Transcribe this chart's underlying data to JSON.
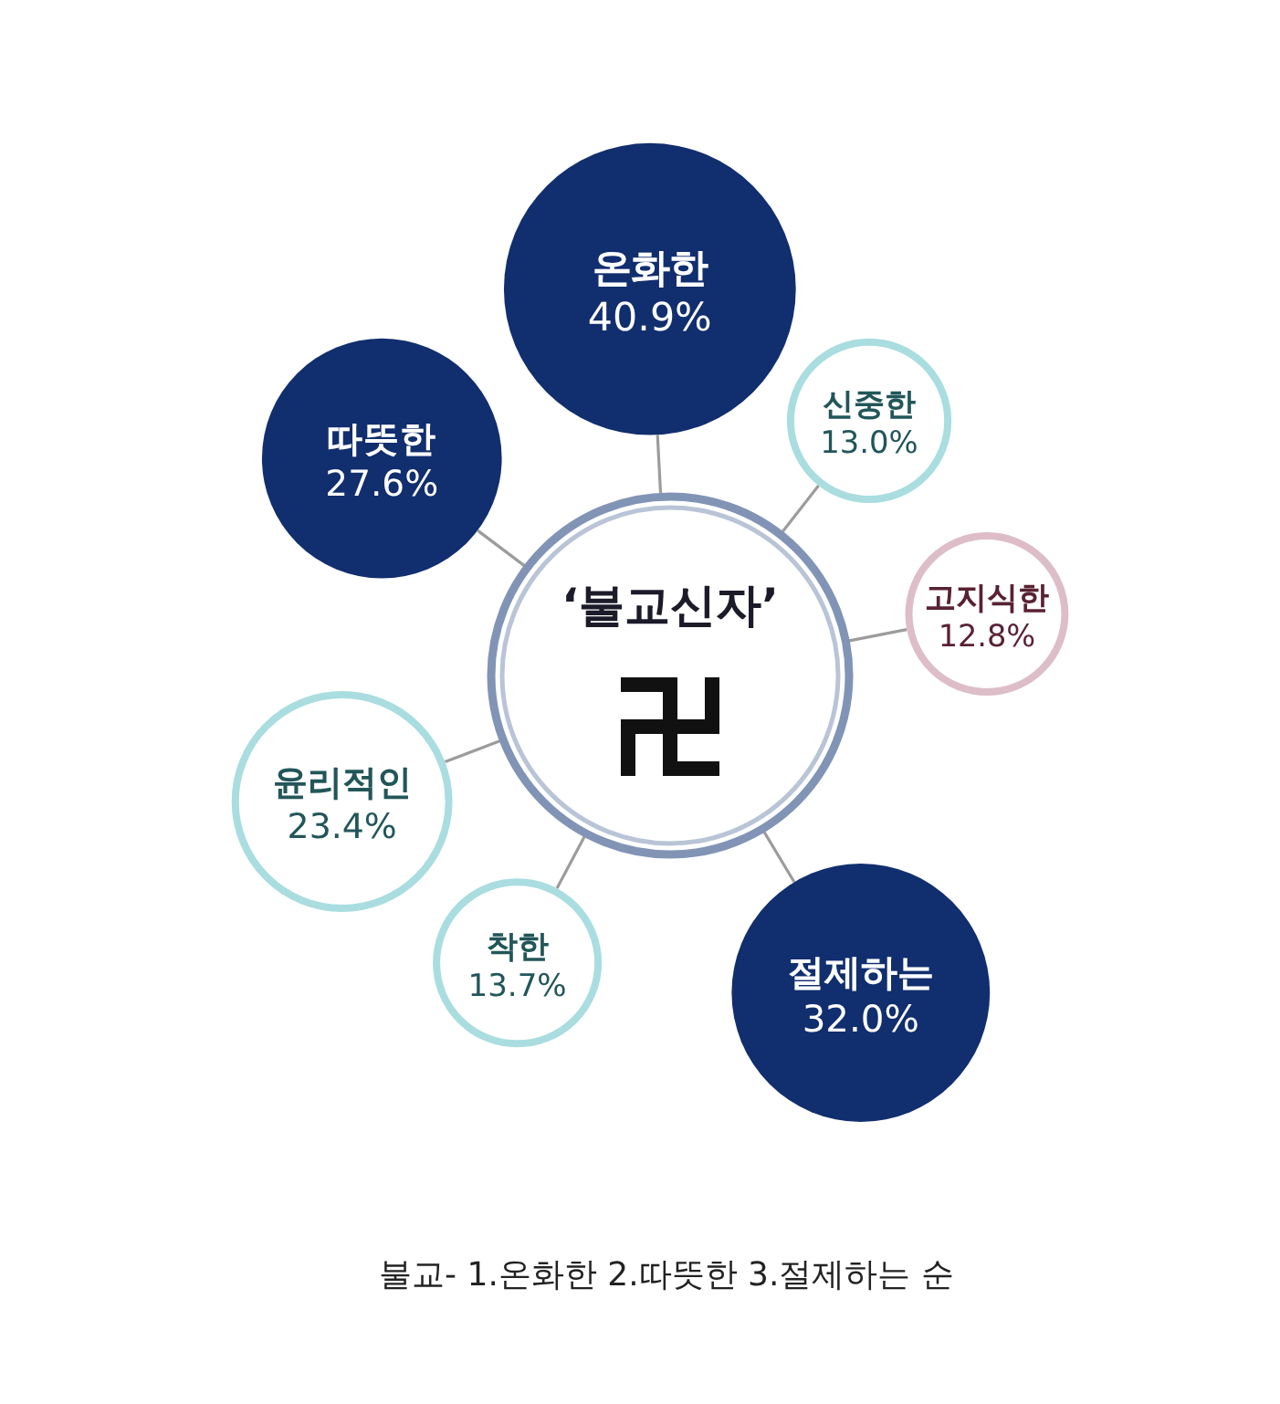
{
  "chart_data": {
    "type": "other",
    "title": "‘불교신자’",
    "categories": [
      "온화한",
      "신중한",
      "고지식한",
      "절제하는",
      "착한",
      "윤리적인",
      "따뜻한"
    ],
    "values": [
      40.9,
      13.0,
      12.8,
      32.0,
      13.7,
      23.4,
      27.6
    ],
    "value_labels": [
      "40.9%",
      "13.0%",
      "12.8%",
      "32.0%",
      "13.7%",
      "23.4%",
      "27.6%"
    ],
    "colors": [
      "#112e6e",
      "#a9dde0",
      "#ddbdc7",
      "#112e6e",
      "#a9dde0",
      "#a9dde0",
      "#112e6e"
    ],
    "annotations": [
      "불교- 1.온화한 2.따뜻한 3.절제하는 순"
    ]
  }
}
